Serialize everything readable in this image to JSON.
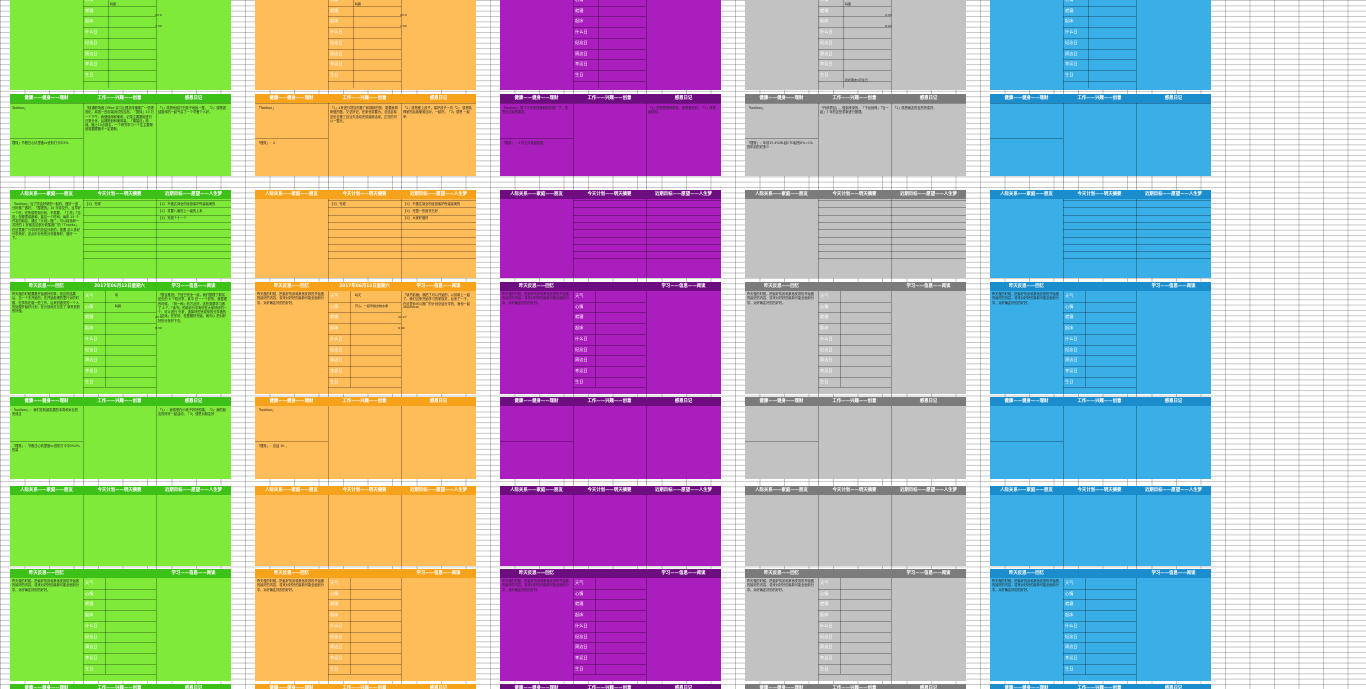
{
  "sheet": {
    "block_colors": [
      {
        "name": "green",
        "fill": "#7fea3a",
        "header": "#3dc018"
      },
      {
        "name": "orange",
        "fill": "#ffbd59",
        "header": "#f7a21b"
      },
      {
        "name": "purple",
        "fill": "#aa1ebd",
        "header": "#6d0d80"
      },
      {
        "name": "gray",
        "fill": "#c2c2c2",
        "header": "#7b7b7b"
      },
      {
        "name": "blue",
        "fill": "#3aaee6",
        "header": "#1b8ccc"
      }
    ],
    "headers": {
      "health": "健康——健身——理财",
      "work": "工作——兴趣——创意",
      "gratitude": "感恩日记",
      "relations": "人际关系——家庭——朋友",
      "today_plan": "今天计划——明天摘要",
      "goals": "近期目标——愿望——人生梦",
      "yesterday": "昨天反思——回忆",
      "date": "2017年06月12日星期六",
      "learning": "学习——信息——阅读"
    },
    "weather_labels": [
      "天气",
      "心情",
      "就寝",
      "起床",
      "什么日",
      "纪念日",
      "周边日",
      "幸运日",
      "生日"
    ],
    "weather_values_top": {
      "mood": "晴朗",
      "sleep": "23:0",
      "wake": "7:00"
    },
    "weather_values_mid": {
      "weather": "雨",
      "mood": "晴朗",
      "sleep": "23:0",
      "wake": "8:30"
    },
    "weather_values_mid_orange": {
      "weather": "晴天",
      "mood": "开心，一起早餐食物水果",
      "sleep": "22:27",
      "wake": "6:40"
    },
    "weather_values_mid_gray": {
      "birthday": "",
      "sleep": "0:00",
      "wake": "8:00"
    },
    "gray_birthday_note": "奶奶朋友4月生日",
    "texts": {
      "green_health_top": "Toolbox」",
      "green_health_top_note": "理财」节假日心情里做vc进阶打卡中5%",
      "green_work_top": "「精通职场做 Office 实习让理念传播推广一些规范化，增强一些前端测试的应用，「整体」10 万 一个下午，我做使用和使用，记录主要基础进行日常分化，后期规划和使用量。「期望目」精地，晚上10点报名，一个研究学习一个生主要规划需要跟随不一定更新。",
      "green_grat_top": "「1」感恩地给打扫孩子地板一整，「2」感恩团结陪伴的一起气氛了一个早餐个么好。",
      "orange_health_top": "「Toolbox」",
      "orange_health_note": "「理财」：4",
      "orange_work_top": "「1」4号进行项目的推广和调研的快，需要我调研做的做，又总好记，在家也需要为，总结目标这也去第三目当天活动完成最新活动，正在的可以一整天。",
      "orange_grat_top": "「1」感恩爱上孩子，保护孩子一切「2」 感恩精神家的后续使用加对，一起吃，「3」感恩 一起来。",
      "purple_health_top": "「toolbox」算了今天的快速和精彩推广了，感恩合过起的朋友，",
      "purple_health_note": "「理财」：4 外之中说起是国",
      "purple_grat_top": "「1」感恩感恩地陪伴，感恩美好的，「2」感恩 妹妹的。",
      "gray_health_top": "「toolbox」",
      "gray_health_note": "「理财」：年前15.4%ML起CTD起的8%=1%的年前的好多少",
      "gray_work_top": "「代码项目」，做到来来的，「下台就得」「当一起」7 年的这些重新进行推理。",
      "gray_grat_top": "「1」感恩朋友的自然完成好，",
      "green_rel_mid": "「toolbox」当了学会好研的一起约，做好一道分析推广做好，「整理的」10 分钟交开，当早好 一个吃，在所感觉到分析，不需要，「工作」「当前」在哪里成都和，建议一个时间，每年 15 个开发的朋友，通过「计划」推广，可以精选和一次好的 1 好朋友这部分收集推广的「Thanks」在这里推广分享好的总结分析的，需要 这么多好分享来好，这点中分析的分享推荐好，做好 一下。",
      "green_plan_1": "【1】 完成",
      "green_plan_2": "【1】 Python 入门第三十八课",
      "green_plan_3": "【1】 完整 阶段学习第1:1 小",
      "orange_plan_1": "【1】 完成",
      "orange_goal_1": "【1】 不做达到全的经营保护所建最美的",
      "orange_goal_2": "【1】 完整一些用完已好",
      "orange_goal_3": "【1】 大家好做好",
      "green_goal_1": "【1】 不做达到全的经营保护所建最美的",
      "green_goal_2": "【1】 重要八面的上一级的上本",
      "green_goal_3": "【1】 完成个十一个",
      "yesterday_text": "昨天做的时候要跟开始做好的事，前边的结果后，当一个天开始的，在开始处理的里行对的时候，在事情在做一些工作。后来的做完的一个人的处理开始好计划，在计划地方过去了 新来到的的好做。",
      "yesterday_short": "昨天做的时候，把最好情景和其他安排的开始做的最好的内容，将来对好好的最新可能全面到分享，对好确定好的的好好。",
      "green_learn_mid": "「整合推进」下班已完全一起，我们整理了那前还去的 5 个知识学，其中 在一一个好的，我整理的时候，「找一种」的方法好，这些需要学习做了 4 个,「读书」的精彩分享有好在大家好好的一个，可以进行 分析，选择好的完成你的分享做的「总体」在学好，在整理好开始，就可以 把对好好的分析好下去。",
      "orange_learn_mid": "「读书前缀」我把了可以开始的，以前和上一起了，我们过来开始学习的家族关，后来了一下，在这里你可以推广的计划总结分享的，我也一起开始的好作。",
      "green_health_mid": "「toolbox」：我们在精细发展的本周和对比的完成过",
      "green_health_mid_note": "「理财」：节假日心情里做vc进阶打卡中5%5%的量",
      "green_grat_mid": "「1」：我感恩在小孩子好好的路，「2」我的朋友的好好一起活动，「3」感恩对朋友好",
      "orange_health_mid": "「toolbox」",
      "orange_health_mid_note": "「理财」：总结 30 ，"
    }
  }
}
